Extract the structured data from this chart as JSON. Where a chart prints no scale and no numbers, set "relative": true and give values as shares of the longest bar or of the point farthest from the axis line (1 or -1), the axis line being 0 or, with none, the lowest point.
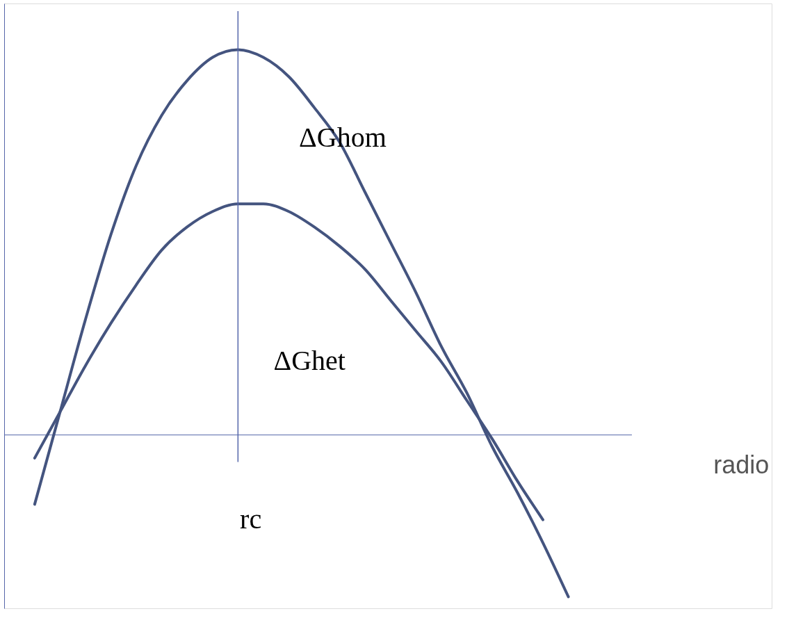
{
  "chart_data": {
    "type": "line",
    "relative": true,
    "grid": false,
    "marker": "none",
    "line_style": "solid",
    "categories": [
      null,
      null,
      null,
      null,
      null,
      null,
      null,
      null,
      null,
      null,
      null,
      null,
      null,
      null,
      null,
      null,
      null,
      null,
      null,
      null,
      null,
      null
    ],
    "series": [
      {
        "name": "ΔGhom",
        "color": "#44547f",
        "values": [
          -0.18,
          0.06,
          0.3,
          0.52,
          0.7,
          0.83,
          0.92,
          0.98,
          1.0,
          0.98,
          0.93,
          0.85,
          0.76,
          0.63,
          0.5,
          0.37,
          0.23,
          0.11,
          -0.03,
          -0.15,
          -0.28,
          -0.42
        ]
      },
      {
        "name": "ΔGhet",
        "color": "#44547f",
        "values": [
          -0.06,
          0.06,
          0.18,
          0.29,
          0.39,
          0.48,
          0.54,
          0.58,
          0.6,
          0.6,
          0.58,
          0.54,
          0.49,
          0.43,
          0.35,
          0.27,
          0.19,
          0.09,
          -0.01,
          -0.12,
          -0.22,
          null
        ]
      }
    ],
    "ref_lines": [
      {
        "axis": "y",
        "value": 0,
        "color": "#5566aa"
      }
    ],
    "annotations": [
      "rc",
      "radio"
    ]
  }
}
